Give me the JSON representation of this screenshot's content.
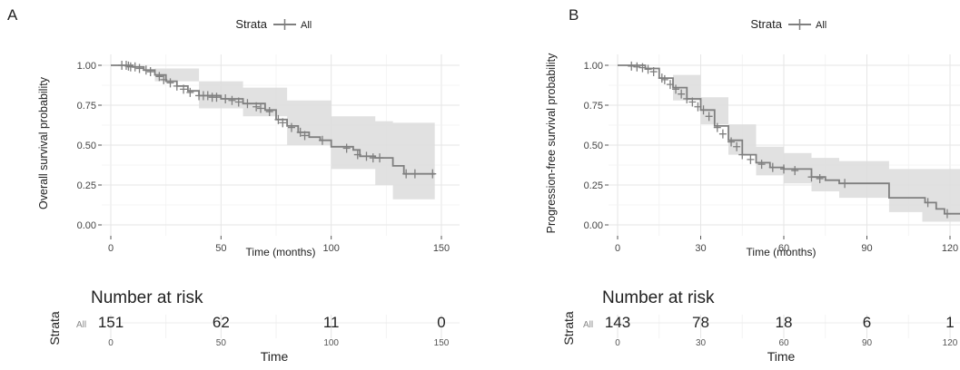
{
  "chart_data": [
    {
      "panel": "A",
      "type": "line",
      "subtype": "kaplan-meier",
      "legend_title": "Strata",
      "legend_position": "top",
      "series": [
        {
          "name": "All",
          "color": "#7f7f7f",
          "ci_color": "#dcdcdc",
          "steps": [
            [
              0,
              1.0
            ],
            [
              10,
              0.99
            ],
            [
              15,
              0.97
            ],
            [
              20,
              0.94
            ],
            [
              25,
              0.9
            ],
            [
              30,
              0.87
            ],
            [
              35,
              0.84
            ],
            [
              40,
              0.81
            ],
            [
              50,
              0.79
            ],
            [
              60,
              0.76
            ],
            [
              70,
              0.72
            ],
            [
              75,
              0.66
            ],
            [
              80,
              0.62
            ],
            [
              85,
              0.58
            ],
            [
              90,
              0.55
            ],
            [
              95,
              0.53
            ],
            [
              100,
              0.49
            ],
            [
              110,
              0.47
            ],
            [
              113,
              0.43
            ],
            [
              120,
              0.42
            ],
            [
              128,
              0.37
            ],
            [
              133,
              0.32
            ],
            [
              147,
              0.32
            ]
          ],
          "ci_upper": [
            [
              0,
              1.0
            ],
            [
              20,
              0.98
            ],
            [
              40,
              0.9
            ],
            [
              60,
              0.86
            ],
            [
              80,
              0.78
            ],
            [
              100,
              0.68
            ],
            [
              120,
              0.65
            ],
            [
              128,
              0.64
            ],
            [
              147,
              0.64
            ]
          ],
          "ci_lower": [
            [
              0,
              1.0
            ],
            [
              20,
              0.9
            ],
            [
              40,
              0.73
            ],
            [
              60,
              0.68
            ],
            [
              80,
              0.5
            ],
            [
              100,
              0.35
            ],
            [
              120,
              0.25
            ],
            [
              128,
              0.16
            ],
            [
              147,
              0.16
            ]
          ],
          "censors": [
            [
              5,
              1.0
            ],
            [
              7,
              1.0
            ],
            [
              8,
              0.995
            ],
            [
              9,
              0.99
            ],
            [
              11,
              0.99
            ],
            [
              13,
              0.98
            ],
            [
              16,
              0.97
            ],
            [
              18,
              0.96
            ],
            [
              22,
              0.93
            ],
            [
              24,
              0.91
            ],
            [
              27,
              0.89
            ],
            [
              30,
              0.87
            ],
            [
              33,
              0.85
            ],
            [
              36,
              0.83
            ],
            [
              40,
              0.81
            ],
            [
              42,
              0.81
            ],
            [
              44,
              0.81
            ],
            [
              46,
              0.8
            ],
            [
              48,
              0.8
            ],
            [
              52,
              0.79
            ],
            [
              55,
              0.78
            ],
            [
              58,
              0.77
            ],
            [
              62,
              0.76
            ],
            [
              66,
              0.74
            ],
            [
              68,
              0.73
            ],
            [
              72,
              0.71
            ],
            [
              76,
              0.66
            ],
            [
              78,
              0.64
            ],
            [
              82,
              0.61
            ],
            [
              86,
              0.58
            ],
            [
              88,
              0.56
            ],
            [
              96,
              0.53
            ],
            [
              107,
              0.48
            ],
            [
              112,
              0.44
            ],
            [
              116,
              0.43
            ],
            [
              119,
              0.42
            ],
            [
              122,
              0.42
            ],
            [
              134,
              0.32
            ],
            [
              138,
              0.32
            ],
            [
              146,
              0.32
            ]
          ]
        }
      ],
      "xlabel": "Time (months)",
      "ylabel": "Overall survival probability",
      "xlim": [
        0,
        150
      ],
      "ylim": [
        0,
        1
      ],
      "xticks": [
        0,
        50,
        100,
        150
      ],
      "yticks": [
        0.0,
        0.25,
        0.5,
        0.75,
        1.0
      ],
      "xtick_labels": [
        "0",
        "50",
        "100",
        "150"
      ],
      "ytick_labels": [
        "0.00",
        "0.25",
        "0.50",
        "0.75",
        "1.00"
      ],
      "grid": true,
      "risk_table": {
        "title": "Number at risk",
        "ylabel": "Strata",
        "row_label": "All",
        "times": [
          "0",
          "50",
          "100",
          "150"
        ],
        "counts": [
          "151",
          "62",
          "11",
          "0"
        ],
        "xlabel": "Time"
      }
    },
    {
      "panel": "B",
      "type": "line",
      "subtype": "kaplan-meier",
      "legend_title": "Strata",
      "legend_position": "top",
      "series": [
        {
          "name": "All",
          "color": "#7f7f7f",
          "ci_color": "#dcdcdc",
          "steps": [
            [
              0,
              1.0
            ],
            [
              10,
              0.98
            ],
            [
              15,
              0.92
            ],
            [
              20,
              0.86
            ],
            [
              25,
              0.79
            ],
            [
              30,
              0.72
            ],
            [
              35,
              0.62
            ],
            [
              40,
              0.53
            ],
            [
              45,
              0.44
            ],
            [
              50,
              0.39
            ],
            [
              55,
              0.36
            ],
            [
              60,
              0.35
            ],
            [
              70,
              0.3
            ],
            [
              75,
              0.28
            ],
            [
              80,
              0.26
            ],
            [
              95,
              0.26
            ],
            [
              98,
              0.17
            ],
            [
              111,
              0.14
            ],
            [
              115,
              0.1
            ],
            [
              118,
              0.07
            ],
            [
              124,
              0.07
            ]
          ],
          "ci_upper": [
            [
              0,
              1.0
            ],
            [
              20,
              0.94
            ],
            [
              30,
              0.8
            ],
            [
              40,
              0.63
            ],
            [
              50,
              0.49
            ],
            [
              60,
              0.45
            ],
            [
              70,
              0.42
            ],
            [
              80,
              0.4
            ],
            [
              98,
              0.35
            ],
            [
              110,
              0.35
            ],
            [
              124,
              0.35
            ]
          ],
          "ci_lower": [
            [
              0,
              1.0
            ],
            [
              20,
              0.78
            ],
            [
              30,
              0.63
            ],
            [
              40,
              0.44
            ],
            [
              50,
              0.31
            ],
            [
              60,
              0.26
            ],
            [
              70,
              0.21
            ],
            [
              80,
              0.17
            ],
            [
              98,
              0.08
            ],
            [
              110,
              0.02
            ],
            [
              124,
              0.0
            ]
          ],
          "censors": [
            [
              5,
              0.995
            ],
            [
              7,
              0.99
            ],
            [
              9,
              0.985
            ],
            [
              11,
              0.975
            ],
            [
              13,
              0.96
            ],
            [
              16,
              0.92
            ],
            [
              17,
              0.91
            ],
            [
              19,
              0.88
            ],
            [
              21,
              0.85
            ],
            [
              23,
              0.82
            ],
            [
              25,
              0.79
            ],
            [
              27,
              0.77
            ],
            [
              29,
              0.74
            ],
            [
              31,
              0.72
            ],
            [
              33,
              0.68
            ],
            [
              36,
              0.61
            ],
            [
              38,
              0.57
            ],
            [
              41,
              0.52
            ],
            [
              43,
              0.49
            ],
            [
              45,
              0.44
            ],
            [
              48,
              0.41
            ],
            [
              52,
              0.38
            ],
            [
              56,
              0.36
            ],
            [
              60,
              0.35
            ],
            [
              64,
              0.34
            ],
            [
              70,
              0.3
            ],
            [
              73,
              0.29
            ],
            [
              82,
              0.26
            ],
            [
              112,
              0.14
            ],
            [
              119,
              0.07
            ]
          ]
        }
      ],
      "xlabel": "Time (months)",
      "ylabel": "Progression-free survival probability",
      "xlim": [
        0,
        124
      ],
      "ylim": [
        0,
        1
      ],
      "xticks": [
        0,
        30,
        60,
        90,
        120
      ],
      "yticks": [
        0.0,
        0.25,
        0.5,
        0.75,
        1.0
      ],
      "xtick_labels": [
        "0",
        "30",
        "60",
        "90",
        "120"
      ],
      "ytick_labels": [
        "0.00",
        "0.25",
        "0.50",
        "0.75",
        "1.00"
      ],
      "grid": true,
      "risk_table": {
        "title": "Number at risk",
        "ylabel": "Strata",
        "row_label": "All",
        "times": [
          "0",
          "30",
          "60",
          "90",
          "120"
        ],
        "counts": [
          "143",
          "78",
          "18",
          "6",
          "1"
        ],
        "xlabel": "Time"
      }
    }
  ],
  "panels": [
    {
      "letter": "A"
    },
    {
      "letter": "B"
    }
  ]
}
